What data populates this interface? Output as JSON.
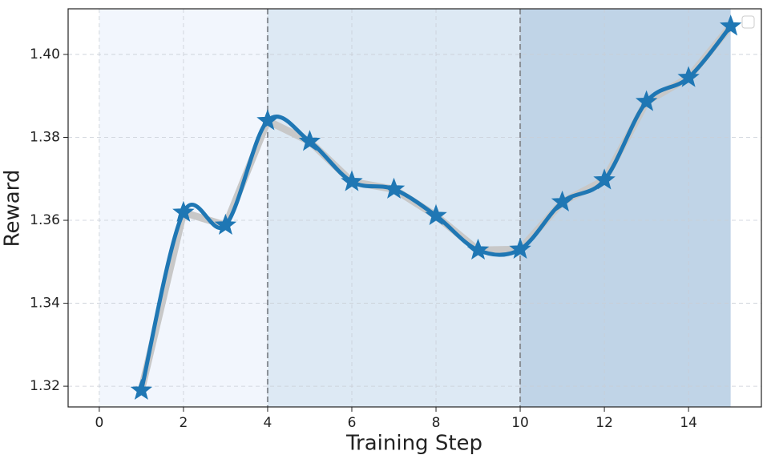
{
  "chart_data": {
    "type": "line",
    "x_label": "Training Step",
    "y_label": "Reward",
    "x": [
      1,
      2,
      3,
      4,
      5,
      6,
      7,
      8,
      9,
      10,
      11,
      12,
      13,
      14,
      15
    ],
    "series": [
      {
        "color": "#1f77b4",
        "values": [
          1.319,
          1.3619,
          1.3588,
          1.384,
          1.379,
          1.3693,
          1.3675,
          1.3611,
          1.3528,
          1.353,
          1.3644,
          1.3697,
          1.3886,
          1.3944,
          1.4068
        ]
      }
    ],
    "raw_line_color": "#c8c8c8",
    "regions": [
      {
        "start": 0,
        "end": 4,
        "color": "#f2f6fd"
      },
      {
        "start": 4,
        "end": 10,
        "color": "#dde9f4"
      },
      {
        "start": 10,
        "end": 15,
        "color": "#c0d4e7"
      }
    ],
    "vlines": [
      4,
      10
    ],
    "xlim": [
      -0.74,
      15.73
    ],
    "ylim": [
      1.315,
      1.411
    ],
    "xticks": [
      0,
      2,
      4,
      6,
      8,
      10,
      12,
      14
    ],
    "yticks": [
      1.32,
      1.34,
      1.36,
      1.38,
      {
        "value": 1.4,
        "label": "1.40"
      }
    ],
    "grid": true
  }
}
